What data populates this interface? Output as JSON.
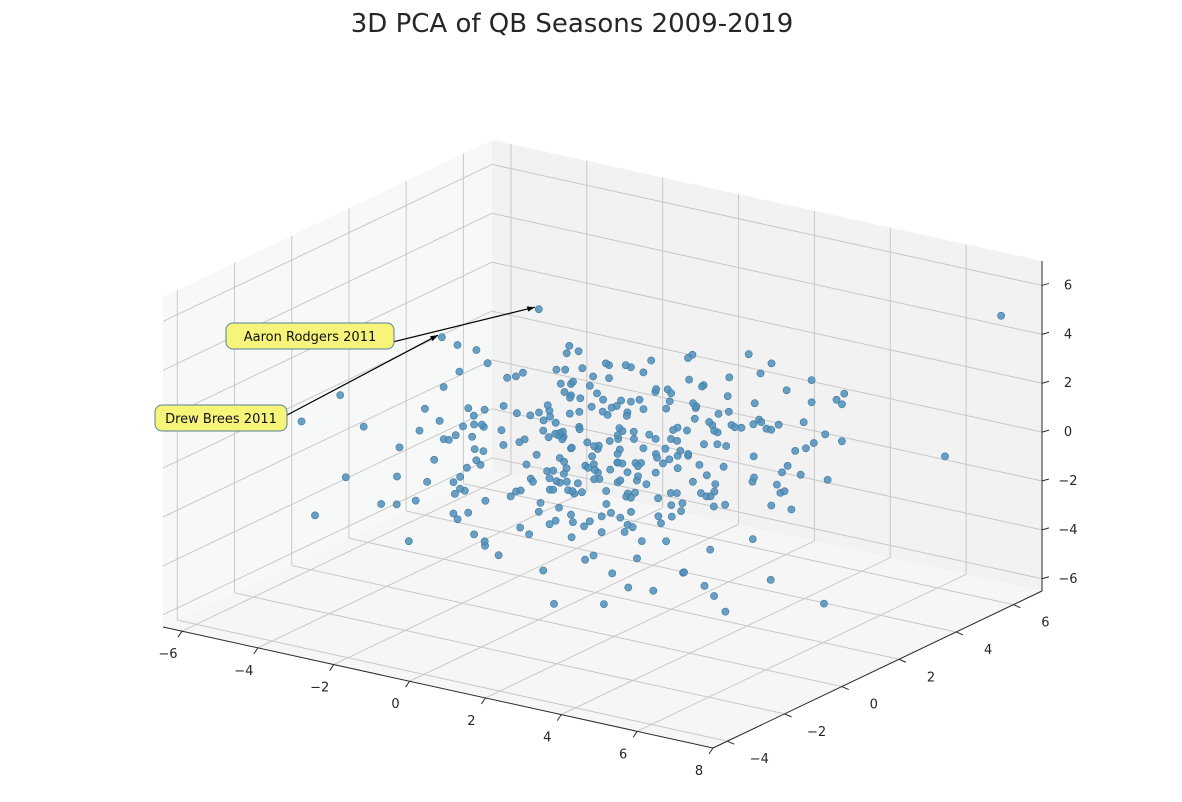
{
  "chart_data": {
    "type": "scatter",
    "title": "3D PCA of QB Seasons 2009-2019",
    "xlabel": "",
    "ylabel": "",
    "zlabel": "",
    "xlim": [
      -6.5,
      8.0
    ],
    "ylim": [
      -4.5,
      7.0
    ],
    "zlim": [
      -6.5,
      7.0
    ],
    "x_ticks": [
      -6,
      -4,
      -2,
      0,
      2,
      4,
      6,
      8
    ],
    "y_ticks": [
      -4,
      -2,
      0,
      2,
      4,
      6
    ],
    "z_ticks": [
      -6,
      -4,
      -2,
      0,
      2,
      4,
      6
    ],
    "grid": true,
    "colors": {
      "points": "#4f8fba",
      "annotation_fill": "#f7f47a",
      "pane_back": "#f2f2f2",
      "pane_side": "#ebebeb",
      "pane_floor": "#f6f6f6",
      "grid": "#c8c8c8"
    },
    "points_note_seed": 7,
    "point_count": 320,
    "annotations": [
      {
        "text": "Aaron Rodgers 2011",
        "point": [
          -2.4,
          3.2,
          3.6
        ]
      },
      {
        "text": "Drew Brees 2011",
        "point": [
          -4.2,
          2.2,
          2.4
        ]
      }
    ]
  }
}
